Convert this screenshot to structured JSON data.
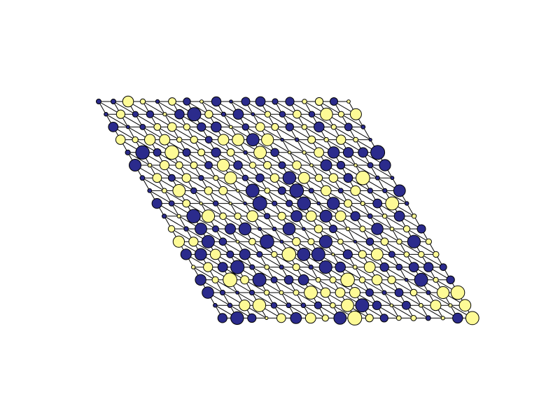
{
  "diagram": {
    "type": "lattice-graph",
    "rows": 18,
    "cols": 18,
    "edges": [
      "horizontal",
      "vertical",
      "diagonal"
    ],
    "colors": {
      "navy": "#2b2b8c",
      "yellow": "#fdfa96",
      "stroke": "#000000",
      "edge": "#000000",
      "background": "#ffffff"
    }
  }
}
